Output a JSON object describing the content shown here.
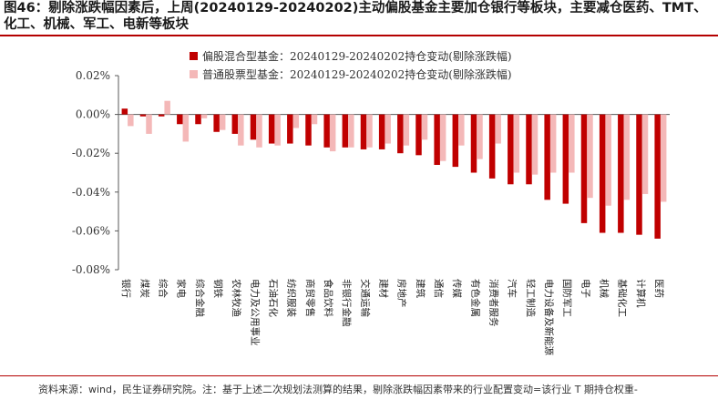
{
  "title": "图46：剔除涨跌幅因素后，上周(20240129-20240202)主动偏股基金主要加仓银行等板块，主要减仓医药、TMT、化工、机械、军工、电新等板块",
  "source": "资料来源：wind，民生证券研究院。注：基于上述二次规划法测算的结果，剔除涨跌幅因素带来的行业配置变动=该行业 T 期持仓权重-",
  "colors": {
    "series1": "#c00000",
    "series2": "#f4b8b8",
    "accent": "#b40000"
  },
  "chart_data": {
    "type": "bar",
    "ylim": [
      -0.0008,
      0.0002
    ],
    "yticks": [
      "0.02%",
      "0.00%",
      "-0.02%",
      "-0.04%",
      "-0.06%",
      "-0.08%"
    ],
    "ytick_values": [
      0.0002,
      0.0,
      -0.0002,
      -0.0004,
      -0.0006,
      -0.0008
    ],
    "legend_position": "top-right",
    "categories": [
      "银行",
      "煤炭",
      "综合",
      "家电",
      "综合金融",
      "钢铁",
      "农林牧渔",
      "电力及公用事业",
      "石油石化",
      "纺织服装",
      "商贸零售",
      "食品饮料",
      "非银行金融",
      "交通运输",
      "建材",
      "房地产",
      "建筑",
      "通信",
      "传媒",
      "有色金属",
      "消费者服务",
      "汽车",
      "轻工制造",
      "电力设备及新能源",
      "国防军工",
      "电子",
      "机械",
      "基础化工",
      "计算机",
      "医药"
    ],
    "series": [
      {
        "name": "偏股混合型基金：20240129-20240202持仓变动(剔除涨跌幅)",
        "values": [
          3e-05,
          -1e-05,
          -1e-05,
          -5e-05,
          -5e-05,
          -9e-05,
          -0.0001,
          -0.00013,
          -0.00015,
          -0.00015,
          -0.00016,
          -0.00017,
          -0.00017,
          -0.00018,
          -0.00018,
          -0.0002,
          -0.00021,
          -0.00026,
          -0.00027,
          -0.0003,
          -0.00033,
          -0.00036,
          -0.00036,
          -0.00044,
          -0.00046,
          -0.00056,
          -0.00061,
          -0.00061,
          -0.00062,
          -0.00064
        ]
      },
      {
        "name": "普通股票型基金：20240129-20240202持仓变动(剔除涨跌幅)",
        "values": [
          -6e-05,
          -0.0001,
          7e-05,
          -0.00014,
          -2e-05,
          -8e-05,
          -0.00016,
          -0.00017,
          -0.00016,
          -7e-05,
          -5e-05,
          -0.00019,
          -0.00017,
          -0.00017,
          -0.00015,
          -0.00016,
          -0.00013,
          -0.00024,
          -0.00016,
          -0.00023,
          -0.00015,
          -0.0003,
          -0.00031,
          -0.0003,
          -0.0003,
          -0.00043,
          -0.00047,
          -0.00044,
          -0.00041,
          -0.00045
        ]
      }
    ]
  }
}
